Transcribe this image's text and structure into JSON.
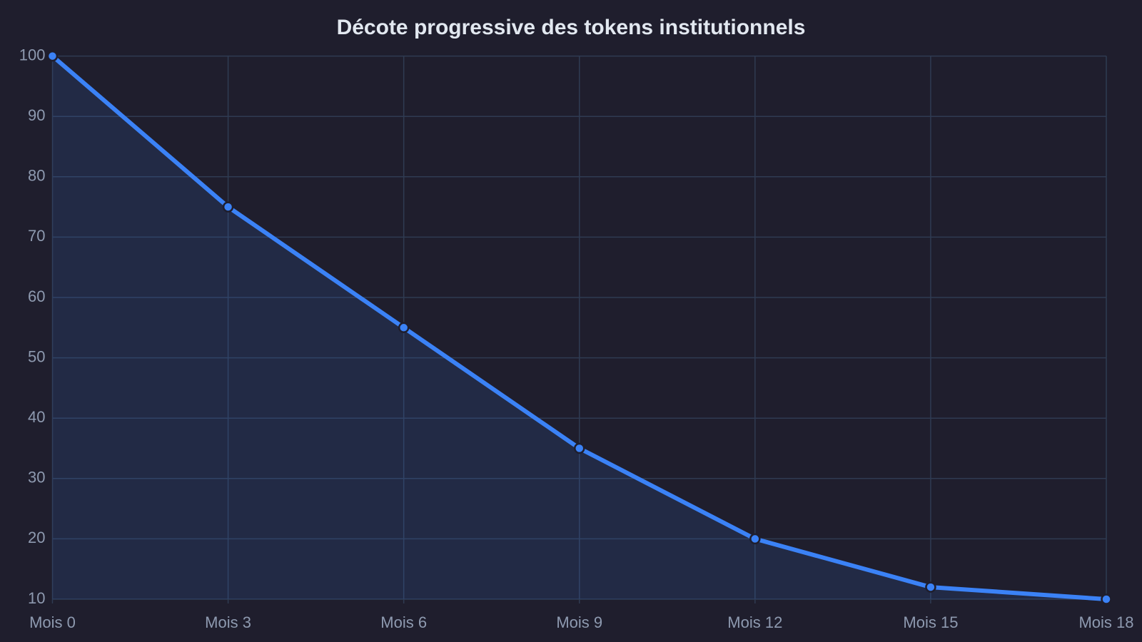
{
  "chart_data": {
    "type": "line",
    "title": "Décote progressive des tokens institutionnels",
    "categories": [
      "Mois 0",
      "Mois 3",
      "Mois 6",
      "Mois 9",
      "Mois 12",
      "Mois 15",
      "Mois 18"
    ],
    "values": [
      100,
      75,
      55,
      35,
      20,
      12,
      10
    ],
    "color": "#3b82f6",
    "fill_area": true,
    "ylim": [
      10,
      100
    ],
    "yticks": [
      10,
      20,
      30,
      40,
      50,
      60,
      70,
      80,
      90,
      100
    ],
    "grid": true
  }
}
